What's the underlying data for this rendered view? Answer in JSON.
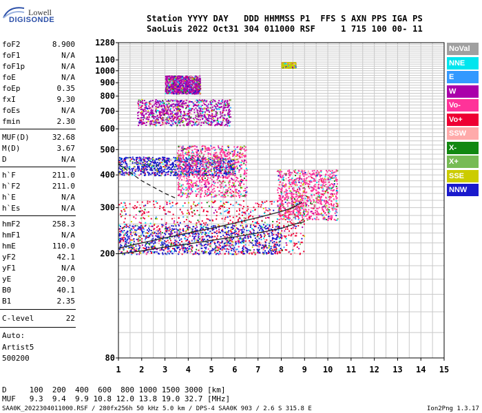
{
  "logo": {
    "top": "Lowell",
    "bottom": "DIGISONDE"
  },
  "header": {
    "line1": "Station YYYY DAY   DDD HHMMSS P1  FFS S AXN PPS IGA PS",
    "line2": "SaoLuis 2022 Oct31 304 011000 RSF     1 715 100 00- 11"
  },
  "params": [
    {
      "label": "foF2",
      "value": "8.900"
    },
    {
      "label": "foF1",
      "value": "N/A"
    },
    {
      "label": "foF1p",
      "value": "N/A"
    },
    {
      "label": "foE",
      "value": "N/A"
    },
    {
      "label": "foEp",
      "value": "0.35"
    },
    {
      "label": "fxI",
      "value": "9.30"
    },
    {
      "label": "foEs",
      "value": "N/A"
    },
    {
      "label": "fmin",
      "value": "2.30"
    },
    {
      "label": "MUF(D)",
      "value": "32.68"
    },
    {
      "label": "M(D)",
      "value": "3.67"
    },
    {
      "label": "D",
      "value": "N/A"
    },
    {
      "label": "h`F",
      "value": "211.0"
    },
    {
      "label": "h`F2",
      "value": "211.0"
    },
    {
      "label": "h`E",
      "value": "N/A"
    },
    {
      "label": "h`Es",
      "value": "N/A"
    },
    {
      "label": "hmF2",
      "value": "258.3"
    },
    {
      "label": "hmF1",
      "value": "N/A"
    },
    {
      "label": "hmE",
      "value": "110.0"
    },
    {
      "label": "yF2",
      "value": "42.1"
    },
    {
      "label": "yF1",
      "value": "N/A"
    },
    {
      "label": "yE",
      "value": "20.0"
    },
    {
      "label": "B0",
      "value": "40.1"
    },
    {
      "label": "B1",
      "value": "2.35"
    },
    {
      "label": "C-level",
      "value": "22"
    }
  ],
  "auto": {
    "line1": "Auto:",
    "line2": "Artist5",
    "line3": "500200"
  },
  "legend": [
    {
      "label": "NoVal",
      "color": "#a0a0a0"
    },
    {
      "label": "NNE",
      "color": "#00e5ee"
    },
    {
      "label": "E",
      "color": "#3399ff"
    },
    {
      "label": "W",
      "color": "#aa00aa"
    },
    {
      "label": "Vo-",
      "color": "#ff3399"
    },
    {
      "label": "Vo+",
      "color": "#ee0033"
    },
    {
      "label": "SSW",
      "color": "#ffaaaa"
    },
    {
      "label": "X-",
      "color": "#118811"
    },
    {
      "label": "X+",
      "color": "#77bb55"
    },
    {
      "label": "SSE",
      "color": "#cccc00"
    },
    {
      "label": "NNW",
      "color": "#1a1acc"
    }
  ],
  "bottom": {
    "d_line": "D     100  200  400  600  800 1000 1500 3000 [km]",
    "muf_line": "MUF   9.3  9.4  9.9 10.8 12.0 13.8 19.0 32.7 [MHz]"
  },
  "footer": {
    "left": "SAA0K_2022304011000.RSF / 280fx256h 50 kHz 5.0 km / DPS-4 SAA0K 903 / 2.6 S 315.8 E",
    "right": "Ion2Png 1.3.17"
  },
  "chart_data": {
    "type": "scatter",
    "title": "",
    "xlabel": "",
    "ylabel": "",
    "xlim": [
      1,
      15
    ],
    "ylim": [
      80,
      1280
    ],
    "x_ticks": [
      1,
      2,
      3,
      4,
      5,
      6,
      7,
      8,
      9,
      10,
      11,
      12,
      13,
      14,
      15
    ],
    "y_ticks": [
      80,
      200,
      300,
      400,
      500,
      600,
      700,
      800,
      900,
      1000,
      1100,
      1280
    ],
    "y_scale": "log",
    "grid": true,
    "legend_position": "right",
    "traces": [
      {
        "name": "ordinary-trace",
        "x": [
          1.0,
          1.5,
          2.0,
          3.0,
          4.0,
          5.0,
          6.0,
          7.0,
          8.0,
          8.5,
          8.9
        ],
        "y": [
          210,
          215,
          220,
          230,
          240,
          250,
          262,
          275,
          290,
          300,
          315
        ]
      },
      {
        "name": "o-trace-lower-envelope",
        "x": [
          1.0,
          2.0,
          3.0,
          4.0,
          5.0,
          6.0,
          7.0,
          8.0,
          8.6,
          9.0
        ],
        "y": [
          200,
          205,
          212,
          218,
          225,
          232,
          240,
          250,
          260,
          265
        ]
      },
      {
        "name": "profile-dashed",
        "x": [
          1.0,
          2.0,
          3.0,
          3.5
        ],
        "y": [
          440,
          380,
          340,
          325
        ]
      }
    ],
    "clusters": [
      {
        "x": [
          1.0,
          9.0
        ],
        "y": [
          200,
          320
        ],
        "series": "Vo+"
      },
      {
        "x": [
          1.0,
          8.0
        ],
        "y": [
          200,
          260
        ],
        "series": "NNW"
      },
      {
        "x": [
          7.8,
          10.4
        ],
        "y": [
          270,
          420
        ],
        "series": "Vo-"
      },
      {
        "x": [
          1.0,
          6.0
        ],
        "y": [
          400,
          470
        ],
        "series": "NNW"
      },
      {
        "x": [
          3.5,
          6.5
        ],
        "y": [
          330,
          520
        ],
        "series": "Vo-"
      },
      {
        "x": [
          1.8,
          5.8
        ],
        "y": [
          620,
          780
        ],
        "series": "W"
      },
      {
        "x": [
          3.0,
          4.5
        ],
        "y": [
          820,
          960
        ],
        "series": "W"
      },
      {
        "x": [
          8.0,
          8.6
        ],
        "y": [
          1030,
          1080
        ],
        "series": "SSE"
      }
    ]
  }
}
